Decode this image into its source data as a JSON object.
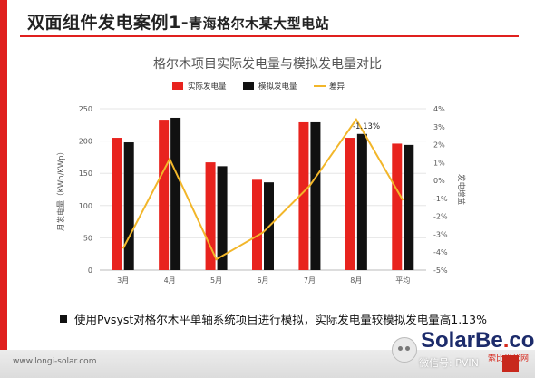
{
  "slide": {
    "title_main": "双面组件发电案例1-",
    "title_sub": "青海格尔木某大型电站",
    "bullet": "使用Pvsyst对格尔木平单轴系统项目进行模拟，实际发电量较模拟发电量高1.13%",
    "footer_url": "www.longi-solar.com"
  },
  "watermark": {
    "brand_a": "SolarBe",
    "brand_dot": ".",
    "brand_b": "com",
    "brand_cn": "索比光伏网",
    "wechat_id": "微信号: PVIN"
  },
  "colors": {
    "accent": "#e0201e",
    "actual": "#e8231e",
    "simulated": "#111111",
    "diff": "#f2b62a"
  },
  "chart_data": {
    "type": "bar",
    "title": "格尔木项目实际发电量与模拟发电量对比",
    "ylabel": "月发电量（KWh/KWp）",
    "y2label": "发电增益",
    "categories": [
      "3月",
      "4月",
      "5月",
      "6月",
      "7月",
      "8月",
      "平均"
    ],
    "ylim": [
      0,
      250
    ],
    "yticks": [
      "0",
      "50",
      "100",
      "150",
      "200",
      "250"
    ],
    "y2lim": [
      -5,
      4
    ],
    "y2ticks": [
      "-5%",
      "-4%",
      "-3%",
      "-2%",
      "-1%",
      "0%",
      "1%",
      "2%",
      "3%",
      "4%"
    ],
    "series": [
      {
        "name": "实际发电量",
        "kind": "bar",
        "axis": "left",
        "values": [
          205,
          233,
          167,
          140,
          229,
          205,
          196
        ]
      },
      {
        "name": "模拟发电量",
        "kind": "bar",
        "axis": "left",
        "values": [
          198,
          236,
          161,
          136,
          229,
          211,
          194
        ]
      },
      {
        "name": "差异",
        "kind": "line",
        "axis": "right",
        "values": [
          -3.8,
          1.2,
          -4.4,
          -2.9,
          -0.3,
          3.4,
          -1.1
        ]
      }
    ],
    "annotation": "-1.13%",
    "legend": "top"
  }
}
